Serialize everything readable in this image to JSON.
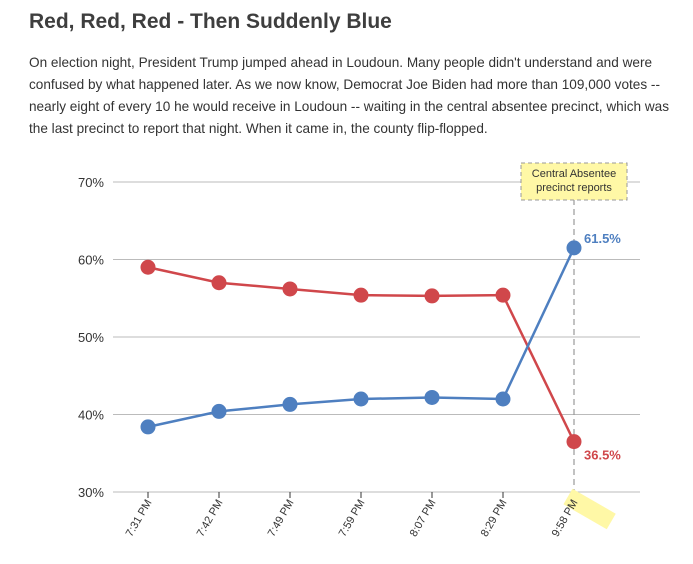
{
  "colors": {
    "red": "#d0474b",
    "blue": "#4e7fc0",
    "highlight": "#fff8a6",
    "grid": "#bbbbbb"
  },
  "chart_data": {
    "type": "line",
    "title": "Red, Red, Red - Then Suddenly Blue",
    "description": "On election night, President Trump jumped ahead in Loudoun. Many people didn't understand and were confused by what happened later. As we now know, Democrat Joe Biden had more than 109,000 votes -- nearly eight of every 10 he would receive in Loudoun -- waiting in the central absentee precinct, which was the last precinct to report that night. When it came in, the county flip-flopped.",
    "categories": [
      "7:31 PM",
      "7:42 PM",
      "7:49 PM",
      "7:59 PM",
      "8:07 PM",
      "8:29 PM",
      "9:58 PM"
    ],
    "series": [
      {
        "color": "#d0474b",
        "values": [
          59.0,
          57.0,
          56.2,
          55.4,
          55.3,
          55.4,
          36.5
        ],
        "end_label": "36.5%"
      },
      {
        "color": "#4e7fc0",
        "values": [
          38.4,
          40.4,
          41.3,
          42.0,
          42.2,
          42.0,
          61.5
        ],
        "end_label": "61.5%"
      }
    ],
    "ylim": [
      30,
      70
    ],
    "yticks": [
      30,
      40,
      50,
      60,
      70
    ],
    "ytick_labels": [
      "30%",
      "40%",
      "50%",
      "60%",
      "70%"
    ],
    "grid": true,
    "annotation": {
      "category": "9:58 PM",
      "line1": "Central Absentee",
      "line2": "precinct reports"
    }
  }
}
